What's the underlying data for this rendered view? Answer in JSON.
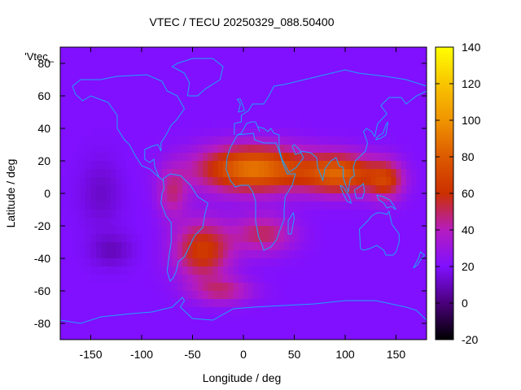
{
  "chart_data": {
    "type": "heatmap",
    "title": "VTEC / TECU 20250329_088.50400",
    "xlabel": "Longitude / deg",
    "ylabel": "Latitude / deg",
    "xlim": [
      -180,
      180
    ],
    "ylim": [
      -90,
      90
    ],
    "xticks": [
      -150,
      -100,
      -50,
      0,
      50,
      100,
      150
    ],
    "yticks": [
      80,
      60,
      40,
      20,
      0,
      -20,
      -40,
      -60,
      -80
    ],
    "colorbar": {
      "min": -20,
      "max": 140,
      "ticks": [
        140,
        120,
        100,
        80,
        60,
        40,
        20,
        0,
        -20
      ],
      "stops": [
        {
          "value": -20,
          "color": "#000000"
        },
        {
          "value": 0,
          "color": "#4a007a"
        },
        {
          "value": 20,
          "color": "#8010ff"
        },
        {
          "value": 40,
          "color": "#b51cbf"
        },
        {
          "value": 60,
          "color": "#cc3000"
        },
        {
          "value": 80,
          "color": "#dc5a00"
        },
        {
          "value": 100,
          "color": "#f09400"
        },
        {
          "value": 120,
          "color": "#f8c500"
        },
        {
          "value": 140,
          "color": "#ffff00"
        }
      ]
    },
    "legend_label": "'Vtec_",
    "background_value": 20,
    "field_features": [
      {
        "lon": 10,
        "lat": 15,
        "sigma_lon": 55,
        "sigma_lat": 14,
        "amplitude": 70
      },
      {
        "lon": 95,
        "lat": 12,
        "sigma_lon": 35,
        "sigma_lat": 12,
        "amplitude": 58
      },
      {
        "lon": 140,
        "lat": 8,
        "sigma_lon": 18,
        "sigma_lat": 12,
        "amplitude": 40
      },
      {
        "lon": -40,
        "lat": -35,
        "sigma_lon": 28,
        "sigma_lat": 18,
        "amplitude": 45
      },
      {
        "lon": -20,
        "lat": -60,
        "sigma_lon": 30,
        "sigma_lat": 8,
        "amplitude": 25
      },
      {
        "lon": 20,
        "lat": -25,
        "sigma_lon": 30,
        "sigma_lat": 12,
        "amplitude": 30
      },
      {
        "lon": -70,
        "lat": 0,
        "sigma_lon": 15,
        "sigma_lat": 15,
        "amplitude": 25
      },
      {
        "lon": -140,
        "lat": 0,
        "sigma_lon": 20,
        "sigma_lat": 20,
        "amplitude": -8
      },
      {
        "lon": -130,
        "lat": -35,
        "sigma_lon": 20,
        "sigma_lat": 10,
        "amplitude": -10
      }
    ]
  }
}
